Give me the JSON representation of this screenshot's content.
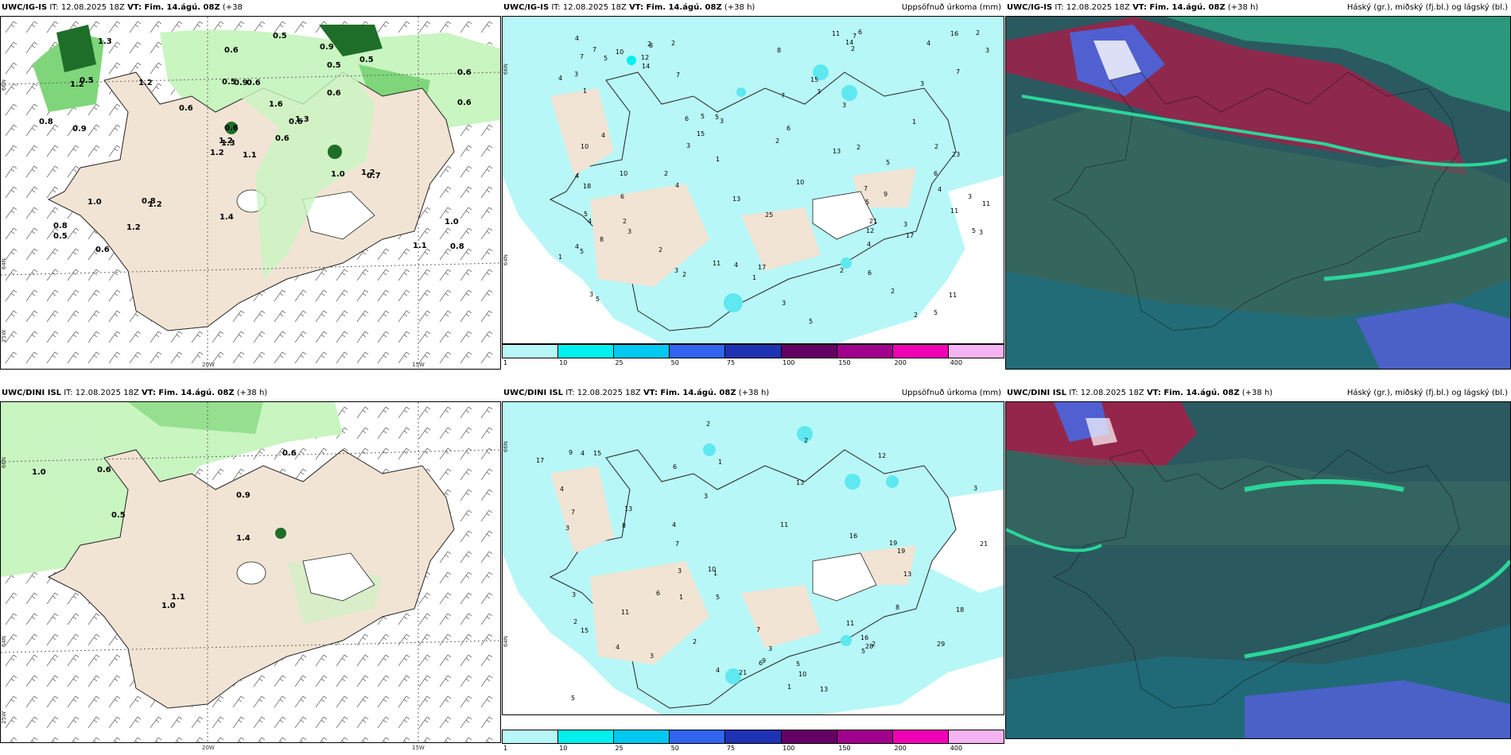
{
  "panels": [
    {
      "id": "top-left",
      "model": "UWC/IG-IS",
      "it": "IT: 12.08.2025 18Z",
      "vt": "VT: Fim. 14.ágú. 08Z",
      "lead": "(+38",
      "lead_wrap": "h)",
      "field": "",
      "lon_labels": [
        "20W",
        "15W"
      ],
      "lat_labels": [
        "66N",
        "64N",
        "25W"
      ],
      "values": [
        "1.1",
        "1.2",
        "1.3",
        "0.8",
        "0.6",
        "1.2",
        "0.9",
        "0.6",
        "0.5",
        "0.6",
        "1.3",
        "0.8",
        "0.9",
        "0.6",
        "1.2",
        "0.6",
        "0.6",
        "0.5",
        "1.6",
        "1.0",
        "0.6",
        "0.5",
        "1.2",
        "0.9",
        "1.3",
        "0.7",
        "0.5",
        "0.6",
        "0.8",
        "1.0",
        "0.6",
        "1.2",
        "1.4",
        "0.6",
        "1.2",
        "0.5",
        "0.8",
        "1.1",
        "1.0",
        "1.2",
        "0.5"
      ]
    },
    {
      "id": "top-middle",
      "model": "UWC/IG-IS",
      "it": "IT: 12.08.2025 18Z",
      "vt": "VT: Fim. 14.ágú. 08Z",
      "lead": "(+38 h)",
      "field": "Uppsöfnuð úrkoma (mm)",
      "lat_labels": [
        "66N",
        "64N"
      ],
      "values": [
        "5",
        "4",
        "3",
        "8",
        "3",
        "2",
        "5",
        "2",
        "6",
        "5",
        "3",
        "4",
        "7",
        "11",
        "11",
        "23",
        "25",
        "10",
        "5",
        "3",
        "2",
        "4",
        "3",
        "11",
        "11",
        "12",
        "21",
        "18",
        "14",
        "5",
        "3",
        "2",
        "15",
        "4",
        "6",
        "17",
        "12",
        "10",
        "17",
        "8",
        "7",
        "6",
        "5",
        "4",
        "3",
        "2",
        "1",
        "7",
        "13",
        "10",
        "11",
        "5",
        "16",
        "7",
        "4",
        "2",
        "3",
        "4",
        "6",
        "10",
        "9",
        "7",
        "6",
        "5",
        "8",
        "4",
        "13",
        "2",
        "2",
        "4",
        "3",
        "2",
        "1",
        "5",
        "2",
        "7",
        "4",
        "3",
        "2",
        "3",
        "5",
        "15",
        "14",
        "1",
        "2",
        "3",
        "2",
        "1",
        "3",
        "7",
        "6",
        "5",
        "4",
        "3",
        "2",
        "1"
      ]
    },
    {
      "id": "top-right",
      "model": "UWC/IG-IS",
      "it": "IT: 12.08.2025 18Z",
      "vt": "VT: Fim. 14.ágú. 08Z",
      "lead": "(+38 h)",
      "field": "Háský (gr.), miðský (fj.bl.) og lágský (bl.)"
    },
    {
      "id": "bottom-left",
      "model": "UWC/DINI ISL",
      "it": "IT: 12.08.2025 18Z",
      "vt": "VT: Fim. 14.ágú. 08Z",
      "lead": "(+38 h)",
      "field": "",
      "lon_labels": [
        "20W",
        "15W"
      ],
      "lat_labels": [
        "66N",
        "64N",
        "25W"
      ],
      "values": [
        "1.0",
        "0.6",
        "0.9",
        "1.1",
        "0.6",
        "1.0",
        "1.4",
        "0.5"
      ]
    },
    {
      "id": "bottom-middle",
      "model": "UWC/DINI ISL",
      "it": "IT: 12.08.2025 18Z",
      "vt": "VT: Fim. 14.ágú. 08Z",
      "lead": "(+38 h)",
      "field": "Uppsöfnuð úrkoma (mm)",
      "lat_labels": [
        "66N",
        "64N"
      ],
      "values": [
        "4",
        "3",
        "11",
        "17",
        "21",
        "15",
        "9",
        "3",
        "19",
        "13",
        "11",
        "29",
        "21",
        "13",
        "12",
        "10",
        "16",
        "28",
        "18",
        "19",
        "15",
        "13",
        "8",
        "7",
        "5",
        "3",
        "2",
        "1",
        "6",
        "4",
        "9",
        "11",
        "8",
        "7",
        "5",
        "3",
        "4",
        "2",
        "1",
        "6",
        "5",
        "4",
        "3",
        "2",
        "3",
        "13",
        "7",
        "5",
        "2",
        "1",
        "6",
        "4",
        "10",
        "16",
        "3",
        "2",
        "1"
      ]
    },
    {
      "id": "bottom-right",
      "model": "UWC/DINI ISL",
      "it": "IT: 12.08.2025 18Z",
      "vt": "VT: Fim. 14.ágú. 08Z",
      "lead": "(+38 h)",
      "field": "Háský (gr.), miðský (fj.bl.) og lágský (bl.)"
    }
  ],
  "colorbar": {
    "labels": [
      "1",
      "10",
      "25",
      "50",
      "75",
      "100",
      "150",
      "200",
      "400"
    ],
    "colors": [
      "#b8f7f7",
      "#00f0f0",
      "#00c8f0",
      "#3264f0",
      "#1e32b4",
      "#640064",
      "#a0008c",
      "#f000b4",
      "#f4b4f4"
    ]
  },
  "colors": {
    "land": "#f2e4d4",
    "precip_light": "#c8f5c0",
    "precip_mid": "#7fd67a",
    "precip_dark": "#1e6e2a",
    "accum_light": "#b8f7f7",
    "accum_mid": "#5ee8f0",
    "cloud_base": "#2a5a60",
    "cloud_green": "#2bd69a",
    "cloud_red": "#a0204a",
    "cloud_blue": "#5060d0"
  }
}
